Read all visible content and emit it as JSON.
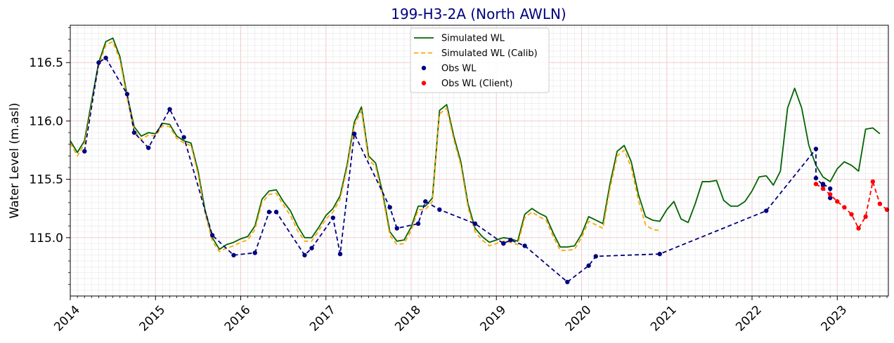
{
  "chart_data": {
    "type": "line",
    "title": "199-H3-2A (North AWLN)",
    "ylabel": "Water Level (m.asl)",
    "xlabel": "",
    "xlim": [
      2014.0,
      2023.6
    ],
    "ylim": [
      114.5,
      116.82
    ],
    "x_ticks": [
      2014,
      2015,
      2016,
      2017,
      2018,
      2019,
      2020,
      2021,
      2022,
      2023
    ],
    "x_tick_labels": [
      "2014",
      "2015",
      "2016",
      "2017",
      "2018",
      "2019",
      "2020",
      "2021",
      "2022",
      "2023"
    ],
    "y_ticks": [
      115.0,
      115.5,
      116.0,
      116.5
    ],
    "y_tick_labels": [
      "115.0",
      "115.5",
      "116.0",
      "116.5"
    ],
    "grid": true,
    "legend_position": "top-center",
    "series": [
      {
        "name": "Simulated WL",
        "style": "solid-line",
        "color": "#006400",
        "points": [
          [
            2014.0,
            115.83
          ],
          [
            2014.083,
            115.73
          ],
          [
            2014.167,
            115.83
          ],
          [
            2014.25,
            116.17
          ],
          [
            2014.333,
            116.5
          ],
          [
            2014.417,
            116.68
          ],
          [
            2014.5,
            116.71
          ],
          [
            2014.583,
            116.55
          ],
          [
            2014.667,
            116.22
          ],
          [
            2014.75,
            115.95
          ],
          [
            2014.833,
            115.87
          ],
          [
            2014.917,
            115.9
          ],
          [
            2015.0,
            115.89
          ],
          [
            2015.083,
            115.98
          ],
          [
            2015.167,
            115.97
          ],
          [
            2015.25,
            115.87
          ],
          [
            2015.333,
            115.83
          ],
          [
            2015.417,
            115.81
          ],
          [
            2015.5,
            115.57
          ],
          [
            2015.583,
            115.23
          ],
          [
            2015.667,
            115.0
          ],
          [
            2015.75,
            114.9
          ],
          [
            2015.833,
            114.94
          ],
          [
            2015.917,
            114.96
          ],
          [
            2016.0,
            114.99
          ],
          [
            2016.083,
            115.01
          ],
          [
            2016.167,
            115.1
          ],
          [
            2016.25,
            115.33
          ],
          [
            2016.333,
            115.4
          ],
          [
            2016.417,
            115.41
          ],
          [
            2016.5,
            115.31
          ],
          [
            2016.583,
            115.23
          ],
          [
            2016.667,
            115.1
          ],
          [
            2016.75,
            115.0
          ],
          [
            2016.833,
            115.0
          ],
          [
            2016.917,
            115.09
          ],
          [
            2017.0,
            115.19
          ],
          [
            2017.083,
            115.25
          ],
          [
            2017.167,
            115.36
          ],
          [
            2017.25,
            115.63
          ],
          [
            2017.333,
            115.99
          ],
          [
            2017.417,
            116.12
          ],
          [
            2017.5,
            115.7
          ],
          [
            2017.583,
            115.64
          ],
          [
            2017.667,
            115.38
          ],
          [
            2017.75,
            115.05
          ],
          [
            2017.833,
            114.97
          ],
          [
            2017.917,
            114.98
          ],
          [
            2018.0,
            115.09
          ],
          [
            2018.083,
            115.27
          ],
          [
            2018.167,
            115.27
          ],
          [
            2018.25,
            115.34
          ],
          [
            2018.333,
            116.09
          ],
          [
            2018.417,
            116.14
          ],
          [
            2018.5,
            115.87
          ],
          [
            2018.583,
            115.65
          ],
          [
            2018.667,
            115.29
          ],
          [
            2018.75,
            115.08
          ],
          [
            2018.833,
            115.01
          ],
          [
            2018.917,
            114.96
          ],
          [
            2019.0,
            114.98
          ],
          [
            2019.083,
            115.0
          ],
          [
            2019.167,
            114.99
          ],
          [
            2019.25,
            114.97
          ],
          [
            2019.333,
            115.2
          ],
          [
            2019.417,
            115.25
          ],
          [
            2019.5,
            115.21
          ],
          [
            2019.583,
            115.18
          ],
          [
            2019.667,
            115.04
          ],
          [
            2019.75,
            114.92
          ],
          [
            2019.833,
            114.92
          ],
          [
            2019.917,
            114.93
          ],
          [
            2020.0,
            115.03
          ],
          [
            2020.083,
            115.18
          ],
          [
            2020.167,
            115.15
          ],
          [
            2020.25,
            115.12
          ],
          [
            2020.333,
            115.46
          ],
          [
            2020.417,
            115.74
          ],
          [
            2020.5,
            115.79
          ],
          [
            2020.583,
            115.65
          ],
          [
            2020.667,
            115.37
          ],
          [
            2020.75,
            115.18
          ],
          [
            2020.833,
            115.15
          ],
          [
            2020.917,
            115.14
          ],
          [
            2021.0,
            115.24
          ],
          [
            2021.083,
            115.31
          ],
          [
            2021.167,
            115.16
          ],
          [
            2021.25,
            115.13
          ],
          [
            2021.333,
            115.29
          ],
          [
            2021.417,
            115.48
          ],
          [
            2021.5,
            115.48
          ],
          [
            2021.583,
            115.49
          ],
          [
            2021.667,
            115.32
          ],
          [
            2021.75,
            115.27
          ],
          [
            2021.833,
            115.27
          ],
          [
            2021.917,
            115.31
          ],
          [
            2022.0,
            115.4
          ],
          [
            2022.083,
            115.52
          ],
          [
            2022.167,
            115.53
          ],
          [
            2022.25,
            115.45
          ],
          [
            2022.333,
            115.57
          ],
          [
            2022.417,
            116.11
          ],
          [
            2022.5,
            116.28
          ],
          [
            2022.583,
            116.11
          ],
          [
            2022.667,
            115.79
          ],
          [
            2022.75,
            115.62
          ],
          [
            2022.833,
            115.52
          ],
          [
            2022.917,
            115.48
          ],
          [
            2023.0,
            115.59
          ],
          [
            2023.083,
            115.65
          ],
          [
            2023.167,
            115.62
          ],
          [
            2023.25,
            115.57
          ],
          [
            2023.333,
            115.93
          ],
          [
            2023.417,
            115.94
          ],
          [
            2023.5,
            115.89
          ]
        ]
      },
      {
        "name": "Simulated WL (Calib)",
        "style": "dashed-line",
        "color": "#FFA500",
        "points": [
          [
            2014.0,
            115.81
          ],
          [
            2014.083,
            115.7
          ],
          [
            2014.167,
            115.8
          ],
          [
            2014.25,
            116.14
          ],
          [
            2014.333,
            116.47
          ],
          [
            2014.417,
            116.65
          ],
          [
            2014.5,
            116.68
          ],
          [
            2014.583,
            116.52
          ],
          [
            2014.667,
            116.19
          ],
          [
            2014.75,
            115.92
          ],
          [
            2014.833,
            115.84
          ],
          [
            2014.917,
            115.88
          ],
          [
            2015.0,
            115.87
          ],
          [
            2015.083,
            115.96
          ],
          [
            2015.167,
            115.95
          ],
          [
            2015.25,
            115.85
          ],
          [
            2015.333,
            115.81
          ],
          [
            2015.417,
            115.79
          ],
          [
            2015.5,
            115.54
          ],
          [
            2015.583,
            115.2
          ],
          [
            2015.667,
            114.97
          ],
          [
            2015.75,
            114.88
          ],
          [
            2015.833,
            114.91
          ],
          [
            2015.917,
            114.93
          ],
          [
            2016.0,
            114.96
          ],
          [
            2016.083,
            114.98
          ],
          [
            2016.167,
            115.07
          ],
          [
            2016.25,
            115.3
          ],
          [
            2016.333,
            115.37
          ],
          [
            2016.417,
            115.38
          ],
          [
            2016.5,
            115.28
          ],
          [
            2016.583,
            115.19
          ],
          [
            2016.667,
            115.06
          ],
          [
            2016.75,
            114.97
          ],
          [
            2016.833,
            114.97
          ],
          [
            2016.917,
            115.06
          ],
          [
            2017.0,
            115.16
          ],
          [
            2017.083,
            115.22
          ],
          [
            2017.167,
            115.33
          ],
          [
            2017.25,
            115.6
          ],
          [
            2017.333,
            115.96
          ],
          [
            2017.417,
            116.09
          ],
          [
            2017.5,
            115.67
          ],
          [
            2017.583,
            115.61
          ],
          [
            2017.667,
            115.35
          ],
          [
            2017.75,
            115.02
          ],
          [
            2017.833,
            114.94
          ],
          [
            2017.917,
            114.95
          ],
          [
            2018.0,
            115.06
          ],
          [
            2018.083,
            115.24
          ],
          [
            2018.167,
            115.24
          ],
          [
            2018.25,
            115.31
          ],
          [
            2018.333,
            116.06
          ],
          [
            2018.417,
            116.11
          ],
          [
            2018.5,
            115.84
          ],
          [
            2018.583,
            115.62
          ],
          [
            2018.667,
            115.26
          ],
          [
            2018.75,
            115.05
          ],
          [
            2018.833,
            114.98
          ],
          [
            2018.917,
            114.93
          ],
          [
            2019.0,
            114.95
          ],
          [
            2019.083,
            114.97
          ],
          [
            2019.167,
            114.96
          ],
          [
            2019.25,
            114.94
          ],
          [
            2019.333,
            115.17
          ],
          [
            2019.417,
            115.22
          ],
          [
            2019.5,
            115.18
          ],
          [
            2019.583,
            115.15
          ],
          [
            2019.667,
            115.01
          ],
          [
            2019.75,
            114.89
          ],
          [
            2019.833,
            114.89
          ],
          [
            2019.917,
            114.9
          ],
          [
            2020.0,
            115.0
          ],
          [
            2020.083,
            115.14
          ],
          [
            2020.167,
            115.11
          ],
          [
            2020.25,
            115.08
          ],
          [
            2020.333,
            115.42
          ],
          [
            2020.417,
            115.7
          ],
          [
            2020.5,
            115.75
          ],
          [
            2020.583,
            115.6
          ],
          [
            2020.667,
            115.32
          ],
          [
            2020.75,
            115.11
          ],
          [
            2020.833,
            115.07
          ],
          [
            2020.917,
            115.06
          ]
        ]
      },
      {
        "name": "Obs WL",
        "style": "dashed-line-with-markers",
        "color": "#000080",
        "points": [
          [
            2014.167,
            115.74
          ],
          [
            2014.333,
            116.5
          ],
          [
            2014.417,
            116.54
          ],
          [
            2014.667,
            116.23
          ],
          [
            2014.75,
            115.9
          ],
          [
            2014.917,
            115.77
          ],
          [
            2015.167,
            116.1
          ],
          [
            2015.333,
            115.86
          ],
          [
            2015.667,
            115.02
          ],
          [
            2015.917,
            114.85
          ],
          [
            2016.167,
            114.87
          ],
          [
            2016.333,
            115.22
          ],
          [
            2016.417,
            115.22
          ],
          [
            2016.75,
            114.85
          ],
          [
            2016.833,
            114.91
          ],
          [
            2017.083,
            115.17
          ],
          [
            2017.167,
            114.86
          ],
          [
            2017.333,
            115.89
          ],
          [
            2017.75,
            115.26
          ],
          [
            2017.833,
            115.08
          ],
          [
            2018.083,
            115.12
          ],
          [
            2018.167,
            115.31
          ],
          [
            2018.333,
            115.24
          ],
          [
            2018.75,
            115.12
          ],
          [
            2019.083,
            114.95
          ],
          [
            2019.167,
            114.98
          ],
          [
            2019.333,
            114.93
          ],
          [
            2019.833,
            114.62
          ],
          [
            2020.083,
            114.76
          ],
          [
            2020.167,
            114.84
          ],
          [
            2020.917,
            114.86
          ],
          [
            2022.167,
            115.23
          ],
          [
            2022.75,
            115.76
          ],
          [
            2022.75,
            115.51
          ],
          [
            2022.833,
            115.45
          ],
          [
            2022.833,
            115.46
          ],
          [
            2022.917,
            115.42
          ],
          [
            2022.917,
            115.34
          ]
        ]
      },
      {
        "name": "Obs WL (Client)",
        "style": "dashed-line-with-markers",
        "color": "#FF0000",
        "points": [
          [
            2022.75,
            115.46
          ],
          [
            2022.833,
            115.42
          ],
          [
            2022.917,
            115.37
          ],
          [
            2023.0,
            115.31
          ],
          [
            2023.083,
            115.26
          ],
          [
            2023.167,
            115.2
          ],
          [
            2023.25,
            115.08
          ],
          [
            2023.333,
            115.18
          ],
          [
            2023.417,
            115.48
          ],
          [
            2023.5,
            115.29
          ],
          [
            2023.583,
            115.24
          ]
        ]
      }
    ]
  }
}
